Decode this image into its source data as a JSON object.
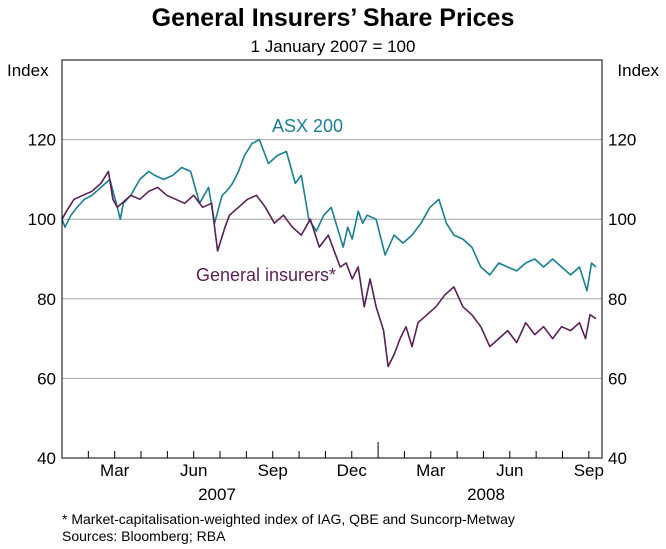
{
  "chart_data": {
    "type": "line",
    "title": "General Insurers’ Share Prices",
    "subtitle": "1 January 2007 = 100",
    "ylabel_left": "Index",
    "ylabel_right": "Index",
    "ylim": [
      40,
      140
    ],
    "yticks": [
      40,
      60,
      80,
      100,
      120
    ],
    "grid": true,
    "x_month_labels": [
      "Mar",
      "Jun",
      "Sep",
      "Dec",
      "Mar",
      "Jun",
      "Sep"
    ],
    "year_labels": [
      "2007",
      "2008"
    ],
    "footnote": "*   Market-capitalisation-weighted index of IAG, QBE and Suncorp-Metway",
    "sources": "Sources: Bloomberg; RBA",
    "series": [
      {
        "name": "ASX 200",
        "color": "#1a7f91",
        "x": [
          0,
          0.1,
          0.3,
          0.5,
          0.75,
          1.0,
          1.3,
          1.6,
          1.85,
          1.95,
          2.05,
          2.3,
          2.6,
          2.9,
          3.1,
          3.4,
          3.7,
          4.0,
          4.3,
          4.6,
          4.9,
          5.1,
          5.35,
          5.5,
          5.7,
          5.9,
          6.1,
          6.35,
          6.6,
          6.9,
          7.2,
          7.5,
          7.8,
          8.0,
          8.25,
          8.5,
          8.75,
          9.0,
          9.2,
          9.4,
          9.55,
          9.7,
          9.9,
          10.05,
          10.2,
          10.5,
          10.8,
          11.1,
          11.4,
          11.7,
          12.0,
          12.3,
          12.6,
          12.85,
          13.1,
          13.4,
          13.7,
          14.0,
          14.3,
          14.6,
          14.9,
          15.2,
          15.5,
          15.8,
          16.1,
          16.4,
          16.7,
          17.0,
          17.3,
          17.55,
          17.7,
          17.85
        ],
        "values": [
          100,
          98,
          101,
          103,
          105,
          106,
          108,
          110,
          103,
          100,
          104,
          106,
          110,
          112,
          111,
          110,
          111,
          113,
          112,
          104,
          108,
          99,
          106,
          107,
          109,
          112,
          116,
          119,
          120,
          114,
          116,
          117,
          109,
          111,
          100,
          97,
          101,
          103,
          98,
          93,
          98,
          95,
          102,
          99,
          101,
          100,
          91,
          96,
          94,
          96,
          99,
          103,
          105,
          99,
          96,
          95,
          93,
          88,
          86,
          89,
          88,
          87,
          89,
          90,
          88,
          90,
          88,
          86,
          88,
          82,
          89,
          88
        ]
      },
      {
        "name": "General insurers*",
        "color": "#5a1f55",
        "x": [
          0,
          0.15,
          0.4,
          0.7,
          1.0,
          1.3,
          1.55,
          1.7,
          1.85,
          2.0,
          2.3,
          2.6,
          2.9,
          3.2,
          3.5,
          3.8,
          4.1,
          4.4,
          4.7,
          5.0,
          5.2,
          5.45,
          5.6,
          5.9,
          6.2,
          6.5,
          6.8,
          7.1,
          7.4,
          7.7,
          8.0,
          8.3,
          8.6,
          8.9,
          9.1,
          9.3,
          9.5,
          9.7,
          9.9,
          10.1,
          10.3,
          10.5,
          10.75,
          10.9,
          11.1,
          11.3,
          11.5,
          11.7,
          11.9,
          12.2,
          12.5,
          12.8,
          13.1,
          13.4,
          13.7,
          14.0,
          14.3,
          14.6,
          14.9,
          15.2,
          15.5,
          15.8,
          16.1,
          16.4,
          16.7,
          17.0,
          17.3,
          17.5,
          17.65,
          17.85
        ],
        "values": [
          100,
          102,
          105,
          106,
          107,
          109,
          112,
          105,
          103,
          104,
          106,
          105,
          107,
          108,
          106,
          105,
          104,
          106,
          103,
          104,
          92,
          98,
          101,
          103,
          105,
          106,
          103,
          99,
          101,
          98,
          96,
          100,
          93,
          96,
          92,
          88,
          89,
          85,
          88,
          78,
          85,
          78,
          72,
          63,
          66,
          70,
          73,
          68,
          74,
          76,
          78,
          81,
          83,
          78,
          76,
          73,
          68,
          70,
          72,
          69,
          74,
          71,
          73,
          70,
          73,
          72,
          74,
          70,
          76,
          75
        ]
      }
    ]
  }
}
